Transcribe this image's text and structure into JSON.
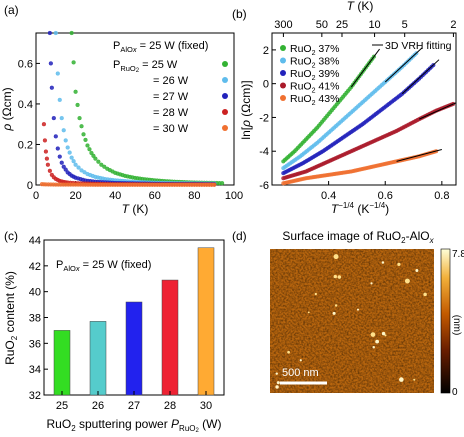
{
  "panels": {
    "a": {
      "tag": "(a)"
    },
    "b": {
      "tag": "(b)"
    },
    "c": {
      "tag": "(c)"
    },
    "d": {
      "tag": "(d)"
    }
  },
  "chart_data": [
    {
      "id": "a",
      "type": "scatter",
      "xlabel": "T (K)",
      "ylabel": "ρ (Ωcm)",
      "xlim": [
        0,
        100
      ],
      "ylim": [
        0,
        0.75
      ],
      "xticks": [
        0,
        20,
        40,
        60,
        80,
        100
      ],
      "yticks": [
        0,
        0.2,
        0.4,
        0.6
      ],
      "legend_header": "P_AlOx = 25 W (fixed)",
      "legend_subheader": "P_RuO2 = 25 W",
      "legend_placement": "top-right",
      "series": [
        {
          "name": "25 W",
          "color": "#33b233",
          "x": [
            18,
            20,
            22,
            24,
            26,
            28,
            30,
            33,
            36,
            40,
            45,
            50,
            55,
            60,
            65,
            70,
            75,
            80,
            85,
            90,
            94
          ],
          "y": [
            0.75,
            0.46,
            0.33,
            0.25,
            0.195,
            0.158,
            0.13,
            0.1,
            0.08,
            0.06,
            0.045,
            0.035,
            0.028,
            0.023,
            0.019,
            0.016,
            0.014,
            0.012,
            0.011,
            0.01,
            0.009
          ]
        },
        {
          "name": "= 26 W",
          "color": "#5fbcec",
          "x": [
            10,
            11,
            12,
            13,
            14,
            15,
            16,
            18,
            20,
            23,
            26,
            30,
            35,
            40,
            50,
            60,
            70,
            80,
            90
          ],
          "y": [
            0.75,
            0.55,
            0.42,
            0.33,
            0.27,
            0.22,
            0.185,
            0.135,
            0.1,
            0.072,
            0.054,
            0.04,
            0.029,
            0.023,
            0.015,
            0.011,
            0.009,
            0.008,
            0.007
          ]
        },
        {
          "name": "= 27 W",
          "color": "#2222bb",
          "x": [
            7,
            7.5,
            8,
            9,
            10,
            11,
            12,
            13,
            14,
            16,
            18,
            20,
            25,
            30,
            40,
            50,
            60,
            70,
            80,
            90
          ],
          "y": [
            0.75,
            0.6,
            0.48,
            0.33,
            0.24,
            0.18,
            0.14,
            0.11,
            0.09,
            0.062,
            0.046,
            0.036,
            0.022,
            0.016,
            0.01,
            0.008,
            0.006,
            0.005,
            0.005,
            0.004
          ]
        },
        {
          "name": "= 28 W",
          "color": "#cc2222",
          "x": [
            4,
            4.5,
            5,
            5.5,
            6,
            7,
            8,
            9,
            10,
            12,
            14,
            16,
            20,
            25,
            30,
            40,
            50,
            60,
            70,
            80,
            90
          ],
          "y": [
            0.3,
            0.22,
            0.165,
            0.13,
            0.1,
            0.07,
            0.05,
            0.038,
            0.03,
            0.02,
            0.015,
            0.012,
            0.009,
            0.007,
            0.006,
            0.004,
            0.004,
            0.003,
            0.003,
            0.003,
            0.002
          ]
        },
        {
          "name": "= 30 W",
          "color": "#f07030",
          "x": [
            3,
            5,
            10,
            20,
            30,
            40,
            50,
            60,
            70,
            80,
            90
          ],
          "y": [
            0.004,
            0.003,
            0.002,
            0.002,
            0.001,
            0.001,
            0.001,
            0.001,
            0.001,
            0.001,
            0.001
          ]
        }
      ]
    },
    {
      "id": "b",
      "type": "scatter",
      "xlabel": "T^-1/4 (K^-1/4)",
      "ylabel": "ln[ρ (Ωcm)]",
      "top_label": "T (K)",
      "xlim": [
        0.2,
        0.85
      ],
      "ylim": [
        -6,
        3
      ],
      "xticks": [
        0.4,
        0.6,
        0.8
      ],
      "yticks": [
        -6,
        -4,
        -2,
        0,
        2
      ],
      "top_ticks": [
        300,
        50,
        25,
        10,
        5,
        2
      ],
      "legend_placement": "top-left",
      "fit_label": "3D VRH fitting",
      "series": [
        {
          "name": "RuO2 37%",
          "color": "#33b233",
          "x": [
            0.24,
            0.28,
            0.32,
            0.36,
            0.4,
            0.44,
            0.48,
            0.52,
            0.56
          ],
          "y": [
            -4.6,
            -4,
            -3.3,
            -2.6,
            -1.8,
            -1,
            -0.2,
            0.7,
            1.6
          ]
        },
        {
          "name": "RuO2 38%",
          "color": "#5fbcec",
          "x": [
            0.24,
            0.3,
            0.36,
            0.42,
            0.48,
            0.54,
            0.6,
            0.66,
            0.71
          ],
          "y": [
            -5.0,
            -4.3,
            -3.5,
            -2.6,
            -1.7,
            -0.8,
            0.1,
            1.0,
            1.8
          ]
        },
        {
          "name": "RuO2 39%",
          "color": "#2222bb",
          "x": [
            0.24,
            0.31,
            0.38,
            0.45,
            0.52,
            0.59,
            0.66,
            0.72,
            0.77
          ],
          "y": [
            -5.3,
            -4.7,
            -4,
            -3.2,
            -2.4,
            -1.5,
            -0.6,
            0.3,
            1.1
          ]
        },
        {
          "name": "RuO2 41%",
          "color": "#aa1a2a",
          "x": [
            0.24,
            0.32,
            0.4,
            0.48,
            0.56,
            0.64,
            0.72,
            0.78,
            0.84
          ],
          "y": [
            -5.6,
            -5.2,
            -4.6,
            -4,
            -3.4,
            -2.8,
            -2.1,
            -1.6,
            -1.2
          ]
        },
        {
          "name": "RuO2 43%",
          "color": "#f07030",
          "x": [
            0.24,
            0.32,
            0.4,
            0.48,
            0.56,
            0.64,
            0.72,
            0.78
          ],
          "y": [
            -5.9,
            -5.6,
            -5.4,
            -5.2,
            -4.9,
            -4.6,
            -4.3,
            -4.0
          ]
        }
      ]
    },
    {
      "id": "c",
      "type": "bar",
      "categories": [
        "25",
        "26",
        "27",
        "28",
        "30"
      ],
      "values": [
        37.0,
        37.7,
        39.2,
        40.9,
        43.4
      ],
      "colors": [
        "#33dd22",
        "#55cccc",
        "#2222ee",
        "#ee2233",
        "#ffaa33"
      ],
      "annotation": "P_AlOx = 25 W (fixed)",
      "xlabel": "RuO2 sputtering power P_RuO2 (W)",
      "ylabel": "RuO2 content (%)",
      "ylim": [
        32,
        44
      ],
      "yticks": [
        32,
        34,
        36,
        38,
        40,
        42,
        44
      ]
    },
    {
      "id": "d",
      "type": "heatmap",
      "title": "Surface image of RuO2-AlOx",
      "scale_bar": "500 nm",
      "colorbar_label": "(nm)",
      "colorbar_range": [
        0,
        7.8
      ],
      "colorbar_ticks": [
        "0",
        "7.8"
      ]
    }
  ]
}
